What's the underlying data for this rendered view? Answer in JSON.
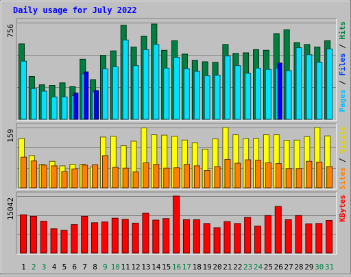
{
  "chart_data": {
    "type": "bar",
    "title": "Daily usage for July 2022",
    "categories": [
      "1",
      "2",
      "3",
      "4",
      "5",
      "6",
      "7",
      "8",
      "9",
      "10",
      "11",
      "12",
      "13",
      "14",
      "15",
      "16",
      "17",
      "18",
      "19",
      "20",
      "21",
      "22",
      "23",
      "24",
      "25",
      "26",
      "27",
      "28",
      "29",
      "30",
      "31"
    ],
    "weekend_days": [
      "2",
      "3",
      "9",
      "10",
      "16",
      "17",
      "23",
      "24",
      "30",
      "31"
    ],
    "panels": [
      {
        "id": "hits",
        "max_label": "756",
        "ylim": [
          0,
          756
        ],
        "labels": [
          "Pages",
          "Files",
          "Hits"
        ],
        "series": [
          {
            "name": "Hits",
            "color": "#008040",
            "values": [
              590,
              335,
              270,
              265,
              285,
              255,
              470,
              310,
              500,
              535,
              735,
              565,
              650,
              745,
              540,
              615,
              510,
              460,
              450,
              445,
              585,
              515,
              520,
              545,
              540,
              670,
              700,
              600,
              585,
              565,
              615
            ]
          },
          {
            "name": "Files",
            "color": "#00e0ff",
            "values": [
              455,
              240,
              220,
              175,
              175,
              185,
              355,
              215,
              395,
              410,
              620,
              420,
              545,
              585,
              400,
              485,
              395,
              375,
              340,
              345,
              495,
              420,
              360,
              400,
              390,
              400,
              380,
              560,
              505,
              445,
              550
            ]
          },
          {
            "name": "Pages",
            "color": "#0000ff",
            "values": [
              0,
              0,
              0,
              0,
              0,
              205,
              370,
              225,
              0,
              0,
              0,
              0,
              0,
              0,
              0,
              0,
              0,
              0,
              0,
              0,
              0,
              0,
              0,
              0,
              0,
              440,
              0,
              0,
              0,
              0,
              0
            ]
          }
        ]
      },
      {
        "id": "visits",
        "max_label": "159",
        "ylim": [
          0,
          159
        ],
        "labels": [
          "Sites",
          "Visits"
        ],
        "series": [
          {
            "name": "Visits",
            "color": "#ffff00",
            "values": [
              130,
              85,
              62,
              70,
              58,
              62,
              62,
              55,
              134,
              136,
              111,
              123,
              158,
              140,
              139,
              136,
              126,
              119,
              102,
              129,
              159,
              140,
              130,
              130,
              140,
              140,
              125,
              126,
              135,
              160,
              137
            ]
          },
          {
            "name": "Sites",
            "color": "#ff8000",
            "values": [
              81,
              71,
              60,
              58,
              43,
              50,
              60,
              61,
              85,
              54,
              52,
              42,
              66,
              62,
              52,
              53,
              62,
              58,
              46,
              56,
              75,
              65,
              74,
              73,
              66,
              64,
              51,
              51,
              70,
              68,
              56
            ]
          }
        ]
      },
      {
        "id": "kbytes",
        "max_label": "15042",
        "ylim": [
          0,
          15042
        ],
        "labels": [
          "KBytes"
        ],
        "series": [
          {
            "name": "KBytes",
            "color": "#ff0000",
            "values": [
              10100,
              9700,
              8400,
              6400,
              6000,
              7500,
              9700,
              8000,
              8200,
              9200,
              8900,
              7900,
              10500,
              8700,
              9100,
              15200,
              8800,
              8800,
              7800,
              6700,
              8300,
              7800,
              9400,
              7100,
              9900,
              12300,
              8800,
              9900,
              7700,
              7800,
              8600
            ]
          }
        ]
      }
    ]
  }
}
